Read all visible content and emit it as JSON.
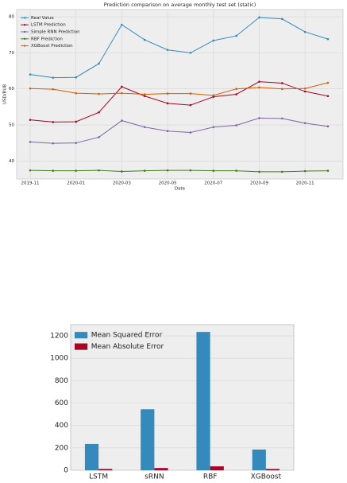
{
  "chart_data": [
    {
      "type": "line",
      "title": "Prediction comparison on average monthly test set (static)",
      "xlabel": "Date",
      "ylabel": "USD/RUB",
      "x": [
        "2019-11",
        "2019-12",
        "2020-01",
        "2020-02",
        "2020-03",
        "2020-04",
        "2020-05",
        "2020-06",
        "2020-07",
        "2020-08",
        "2020-09",
        "2020-10",
        "2020-11",
        "2020-12"
      ],
      "xticks": [
        "2019-11",
        "2020-01",
        "2020-03",
        "2020-05",
        "2020-07",
        "2020-09",
        "2020-11"
      ],
      "ylim": [
        35,
        82
      ],
      "yticks": [
        40,
        50,
        60,
        70,
        80
      ],
      "grid": true,
      "legend": "upper left",
      "series": [
        {
          "name": "Real Value",
          "color": "#348ABD",
          "values": [
            64.0,
            63.1,
            63.2,
            67.0,
            77.8,
            73.6,
            70.8,
            70.0,
            73.4,
            74.7,
            79.8,
            79.4,
            75.8,
            73.8
          ]
        },
        {
          "name": "LSTM Prediction",
          "color": "#A60628",
          "values": [
            51.4,
            50.8,
            50.9,
            53.5,
            60.6,
            58.0,
            56.0,
            55.5,
            57.8,
            58.5,
            62.0,
            61.6,
            59.3,
            58.0
          ]
        },
        {
          "name": "Simple RNN Prediction",
          "color": "#7A68A6",
          "values": [
            45.3,
            44.9,
            45.0,
            46.6,
            51.2,
            49.4,
            48.3,
            47.9,
            49.4,
            49.9,
            51.9,
            51.8,
            50.5,
            49.6
          ]
        },
        {
          "name": "RBF Prediction",
          "color": "#467821",
          "values": [
            37.4,
            37.3,
            37.3,
            37.4,
            37.1,
            37.3,
            37.4,
            37.4,
            37.3,
            37.3,
            37.0,
            37.0,
            37.2,
            37.3
          ]
        },
        {
          "name": "XGBoost Prediction",
          "color": "#D55E00",
          "values": [
            60.1,
            59.9,
            58.8,
            58.6,
            58.8,
            58.5,
            58.7,
            58.7,
            58.2,
            60.0,
            60.4,
            60.0,
            60.1,
            61.7
          ]
        }
      ]
    },
    {
      "type": "bar",
      "categories": [
        "LSTM",
        "sRNN",
        "RBF",
        "XGBoost"
      ],
      "ylim": [
        0,
        1300
      ],
      "yticks": [
        0,
        200,
        400,
        600,
        800,
        1000,
        1200
      ],
      "grid": true,
      "legend": "upper left",
      "series": [
        {
          "name": "Mean Squared Error",
          "color": "#348ABD",
          "values": [
            235,
            545,
            1235,
            185
          ]
        },
        {
          "name": "Mean Absolute Error",
          "color": "#A60628",
          "values": [
            12,
            20,
            35,
            12
          ]
        }
      ]
    }
  ]
}
